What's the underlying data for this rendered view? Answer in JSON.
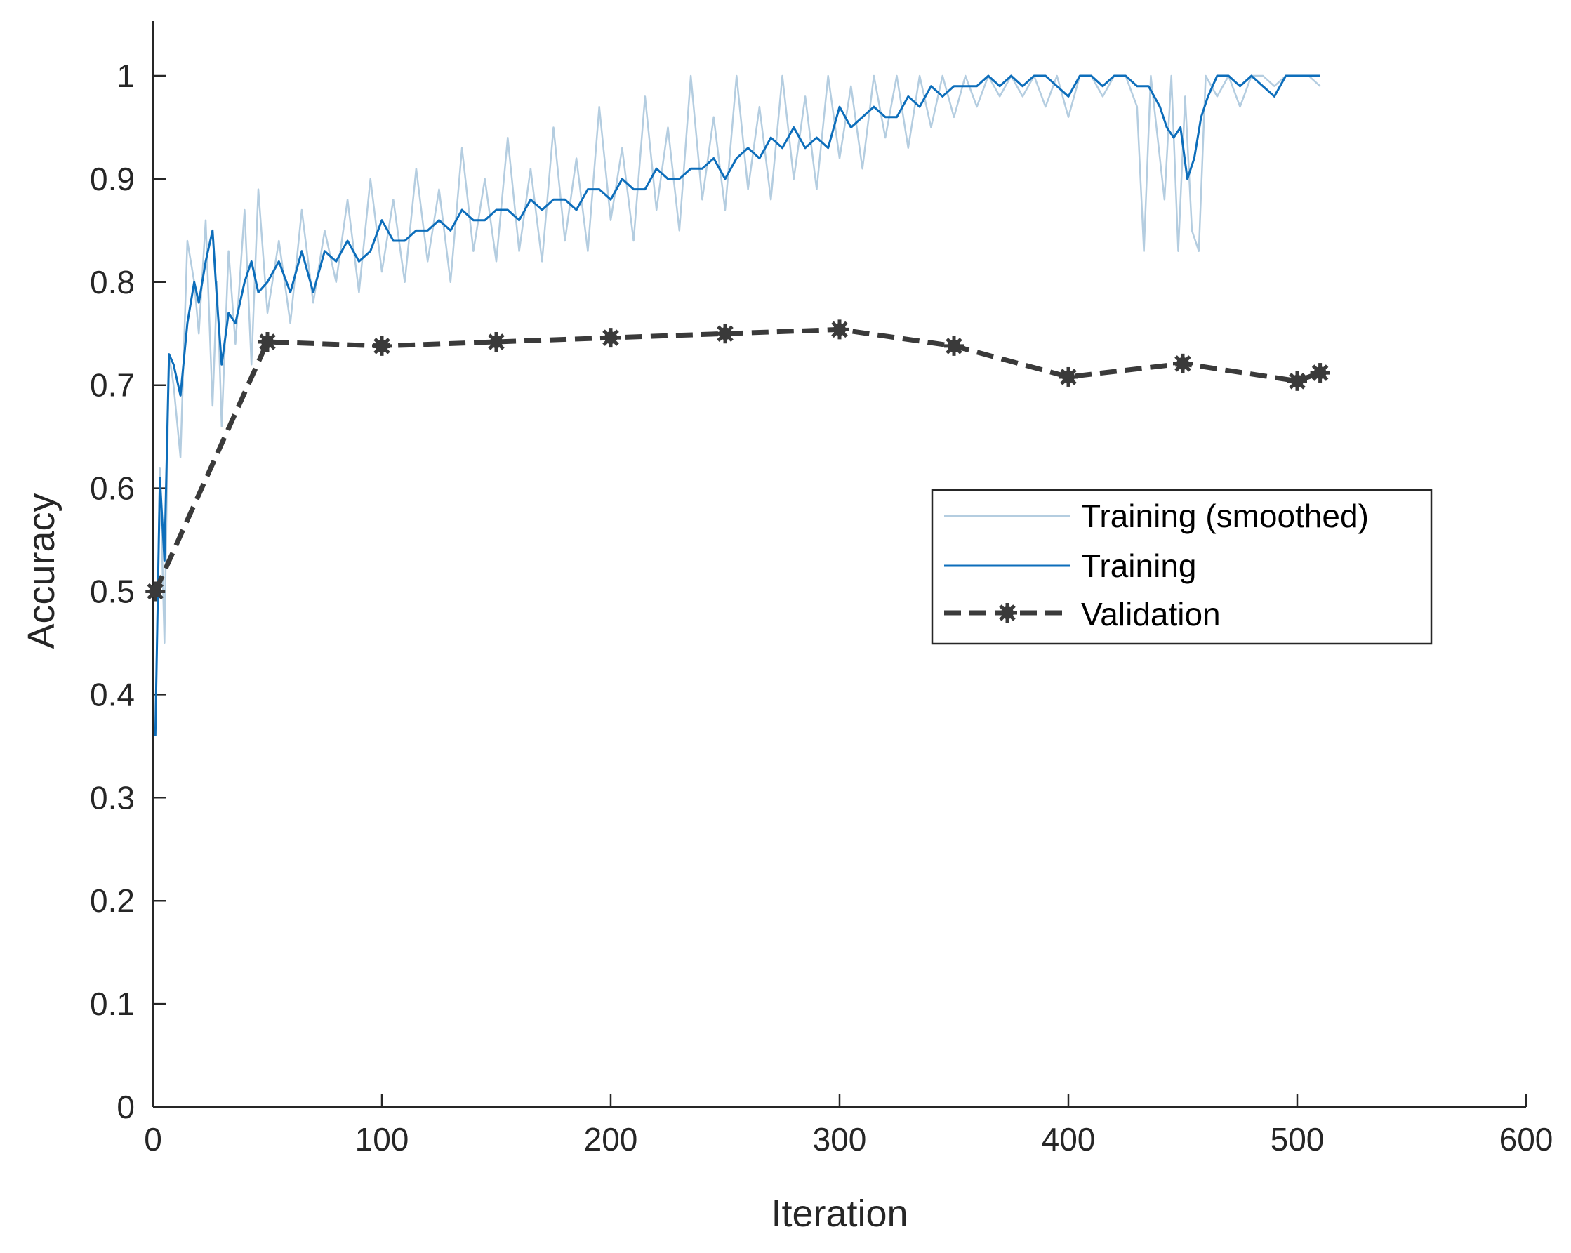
{
  "chart_data": {
    "type": "line",
    "title": "",
    "xlabel": "Iteration",
    "ylabel": "Accuracy",
    "xlim": [
      0,
      600
    ],
    "ylim": [
      0,
      1.05
    ],
    "xticks": [
      "0",
      "100",
      "200",
      "300",
      "400",
      "500",
      "600"
    ],
    "yticks": [
      "0",
      "0.1",
      "0.2",
      "0.3",
      "0.4",
      "0.5",
      "0.6",
      "0.7",
      "0.8",
      "0.9",
      "1"
    ],
    "grid": false,
    "legend_position": "center-right",
    "series": [
      {
        "name": "Training (smoothed)",
        "color": "#b4cde0",
        "style": "solid",
        "x": [
          1,
          3,
          5,
          7,
          9,
          12,
          15,
          18,
          20,
          23,
          26,
          28,
          30,
          33,
          36,
          40,
          43,
          46,
          50,
          55,
          60,
          65,
          70,
          75,
          80,
          85,
          90,
          95,
          100,
          105,
          110,
          115,
          120,
          125,
          130,
          135,
          140,
          145,
          150,
          155,
          160,
          165,
          170,
          175,
          180,
          185,
          190,
          195,
          200,
          205,
          210,
          215,
          220,
          225,
          230,
          235,
          240,
          245,
          250,
          255,
          260,
          265,
          270,
          275,
          280,
          285,
          290,
          295,
          300,
          305,
          310,
          315,
          320,
          325,
          330,
          335,
          340,
          345,
          350,
          355,
          360,
          365,
          370,
          375,
          380,
          385,
          390,
          395,
          400,
          405,
          410,
          415,
          420,
          425,
          430,
          433,
          436,
          439,
          442,
          445,
          448,
          451,
          454,
          457,
          460,
          465,
          470,
          475,
          480,
          485,
          490,
          495,
          500,
          505,
          510
        ],
        "values": [
          0.36,
          0.62,
          0.45,
          0.73,
          0.7,
          0.63,
          0.84,
          0.8,
          0.75,
          0.86,
          0.68,
          0.8,
          0.66,
          0.83,
          0.74,
          0.87,
          0.72,
          0.89,
          0.77,
          0.84,
          0.76,
          0.87,
          0.78,
          0.85,
          0.8,
          0.88,
          0.79,
          0.9,
          0.81,
          0.88,
          0.8,
          0.91,
          0.82,
          0.89,
          0.8,
          0.93,
          0.83,
          0.9,
          0.82,
          0.94,
          0.83,
          0.91,
          0.82,
          0.95,
          0.84,
          0.92,
          0.83,
          0.97,
          0.86,
          0.93,
          0.84,
          0.98,
          0.87,
          0.95,
          0.85,
          1.0,
          0.88,
          0.96,
          0.87,
          1.0,
          0.89,
          0.97,
          0.88,
          1.0,
          0.9,
          0.98,
          0.89,
          1.0,
          0.92,
          0.99,
          0.91,
          1.0,
          0.94,
          1.0,
          0.93,
          1.0,
          0.95,
          1.0,
          0.96,
          1.0,
          0.97,
          1.0,
          0.98,
          1.0,
          0.98,
          1.0,
          0.97,
          1.0,
          0.96,
          1.0,
          1.0,
          0.98,
          1.0,
          1.0,
          0.97,
          0.83,
          1.0,
          0.94,
          0.88,
          1.0,
          0.83,
          0.98,
          0.85,
          0.83,
          1.0,
          0.98,
          1.0,
          0.97,
          1.0,
          1.0,
          0.99,
          1.0,
          1.0,
          1.0,
          0.99
        ]
      },
      {
        "name": "Training",
        "color": "#0d6ebb",
        "style": "solid",
        "x": [
          1,
          3,
          5,
          7,
          9,
          12,
          15,
          18,
          20,
          23,
          26,
          28,
          30,
          33,
          36,
          40,
          43,
          46,
          50,
          55,
          60,
          65,
          70,
          75,
          80,
          85,
          90,
          95,
          100,
          105,
          110,
          115,
          120,
          125,
          130,
          135,
          140,
          145,
          150,
          155,
          160,
          165,
          170,
          175,
          180,
          185,
          190,
          195,
          200,
          205,
          210,
          215,
          220,
          225,
          230,
          235,
          240,
          245,
          250,
          255,
          260,
          265,
          270,
          275,
          280,
          285,
          290,
          295,
          300,
          305,
          310,
          315,
          320,
          325,
          330,
          335,
          340,
          345,
          350,
          355,
          360,
          365,
          370,
          375,
          380,
          385,
          390,
          395,
          400,
          405,
          410,
          415,
          420,
          425,
          430,
          435,
          440,
          443,
          446,
          449,
          452,
          455,
          458,
          461,
          465,
          470,
          475,
          480,
          485,
          490,
          495,
          500,
          505,
          510
        ],
        "values": [
          0.36,
          0.61,
          0.53,
          0.73,
          0.72,
          0.69,
          0.76,
          0.8,
          0.78,
          0.82,
          0.85,
          0.78,
          0.72,
          0.77,
          0.76,
          0.8,
          0.82,
          0.79,
          0.8,
          0.82,
          0.79,
          0.83,
          0.79,
          0.83,
          0.82,
          0.84,
          0.82,
          0.83,
          0.86,
          0.84,
          0.84,
          0.85,
          0.85,
          0.86,
          0.85,
          0.87,
          0.86,
          0.86,
          0.87,
          0.87,
          0.86,
          0.88,
          0.87,
          0.88,
          0.88,
          0.87,
          0.89,
          0.89,
          0.88,
          0.9,
          0.89,
          0.89,
          0.91,
          0.9,
          0.9,
          0.91,
          0.91,
          0.92,
          0.9,
          0.92,
          0.93,
          0.92,
          0.94,
          0.93,
          0.95,
          0.93,
          0.94,
          0.93,
          0.97,
          0.95,
          0.96,
          0.97,
          0.96,
          0.96,
          0.98,
          0.97,
          0.99,
          0.98,
          0.99,
          0.99,
          0.99,
          1.0,
          0.99,
          1.0,
          0.99,
          1.0,
          1.0,
          0.99,
          0.98,
          1.0,
          1.0,
          0.99,
          1.0,
          1.0,
          0.99,
          0.99,
          0.97,
          0.95,
          0.94,
          0.95,
          0.9,
          0.92,
          0.96,
          0.98,
          1.0,
          1.0,
          0.99,
          1.0,
          0.99,
          0.98,
          1.0,
          1.0,
          1.0,
          1.0
        ]
      },
      {
        "name": "Validation",
        "color": "#3a3a3a",
        "style": "dashed",
        "marker": "star",
        "x": [
          1,
          50,
          100,
          150,
          200,
          250,
          300,
          350,
          400,
          450,
          500,
          510
        ],
        "values": [
          0.5,
          0.742,
          0.738,
          0.742,
          0.746,
          0.75,
          0.754,
          0.738,
          0.708,
          0.721,
          0.704,
          0.712
        ]
      }
    ]
  }
}
